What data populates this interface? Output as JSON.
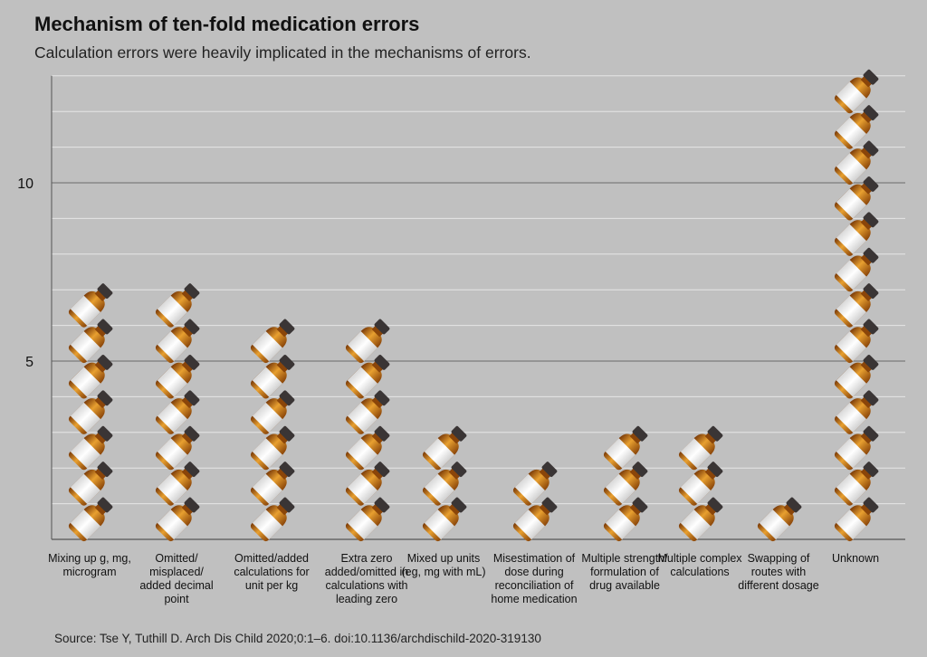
{
  "title": "Mechanism of ten-fold medication errors",
  "subtitle": "Calculation errors were heavily implicated in the mechanisms of errors.",
  "source": "Source: Tse Y, Tuthill D. Arch Dis Child 2020;0:1–6.     doi:10.1136/archdischild-2020-319130",
  "chart_data": {
    "type": "bar",
    "style": "pictograph (medicine bottle icons, one per error)",
    "title": "Mechanism of ten-fold medication errors",
    "subtitle": "Calculation errors were heavily implicated in the mechanisms of errors.",
    "xlabel": "",
    "ylabel": "",
    "ylim": [
      0,
      13
    ],
    "yticks": [
      5,
      10
    ],
    "grid": true,
    "categories": [
      "Mixing up g, mg, microgram",
      "Omitted/ misplaced/ added decimal point",
      "Omitted/added calculations for unit per kg",
      "Extra zero added/omitted in calculations with leading zero",
      "Mixed up units (eg, mg with mL)",
      "Misestimation of dose during reconciliation of home medication",
      "Multiple strength/ formulation of drug available",
      "Multiple complex calculations",
      "Swapping of routes with different dosage",
      "Unknown"
    ],
    "values": [
      7,
      7,
      6,
      6,
      3,
      2,
      3,
      3,
      1,
      13
    ],
    "colors": {
      "background": "#c0c0c0",
      "grid": "#e6e6e6",
      "major_grid": "#6a6a6a",
      "bottle_glass": "#b5630f",
      "bottle_label": "#f2f2f2",
      "bottle_cap": "#3a3535"
    }
  }
}
